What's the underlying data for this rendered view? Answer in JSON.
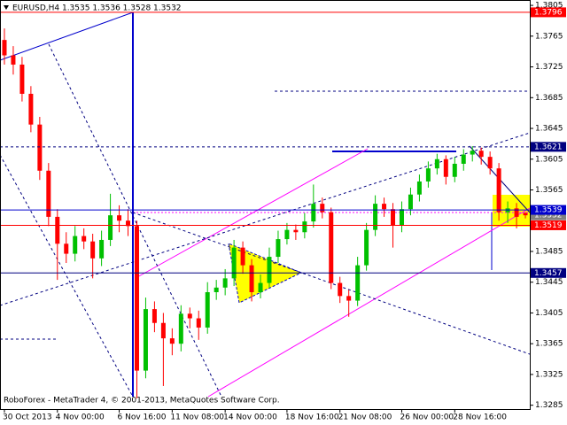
{
  "chart_data": {
    "type": "candlestick",
    "title": "EURUSD,H4  1.3535 1.3536 1.3528 1.3532",
    "footer": "RoboForex - MetaTrader 4, © 2001-2013, MetaQuotes Software Corp.",
    "categories": [
      "30 Oct 2013",
      null,
      null,
      null,
      null,
      null,
      "4 Nov 00:00",
      null,
      null,
      null,
      null,
      null,
      null,
      "6 Nov 16:00",
      null,
      null,
      null,
      null,
      null,
      "11 Nov 08:00",
      null,
      null,
      null,
      null,
      null,
      "14 Nov 00:00",
      null,
      null,
      null,
      null,
      null,
      null,
      "18 Nov 16:00",
      null,
      null,
      null,
      null,
      null,
      "21 Nov 08:00",
      null,
      null,
      null,
      null,
      null,
      null,
      "26 Nov 00:00",
      null,
      null,
      null,
      null,
      null,
      "28 Nov 16:00",
      null,
      null,
      null,
      null,
      null,
      null,
      null,
      null
    ],
    "open": [
      1.376,
      1.374,
      1.3728,
      1.369,
      1.365,
      1.359,
      1.353,
      1.3495,
      1.3482,
      1.3505,
      1.3498,
      1.3476,
      1.35,
      1.3532,
      1.3525,
      1.3518,
      1.333,
      1.341,
      1.3392,
      1.3372,
      1.3365,
      1.3404,
      1.3398,
      1.3386,
      1.3432,
      1.3438,
      1.345,
      1.349,
      1.3467,
      1.3432,
      1.3444,
      1.3478,
      1.3501,
      1.3513,
      1.351,
      1.3524,
      1.3547,
      1.3536,
      1.3444,
      1.3427,
      1.3421,
      1.3467,
      1.3513,
      1.3547,
      1.354,
      1.3519,
      1.354,
      1.3559,
      1.3576,
      1.3593,
      1.3605,
      1.3582,
      1.3599,
      1.3611,
      1.3616,
      1.3608,
      1.3593,
      1.3536,
      1.3541,
      1.3535
    ],
    "high": [
      1.3775,
      1.3752,
      1.3738,
      1.37,
      1.366,
      1.36,
      1.354,
      1.351,
      1.3518,
      1.3515,
      1.3508,
      1.3512,
      1.356,
      1.3545,
      1.354,
      1.3525,
      1.3425,
      1.342,
      1.3405,
      1.3385,
      1.3415,
      1.3412,
      1.3408,
      1.3445,
      1.3448,
      1.3462,
      1.35,
      1.3498,
      1.3475,
      1.3455,
      1.349,
      1.3512,
      1.3522,
      1.352,
      1.3535,
      1.3572,
      1.3555,
      1.3542,
      1.3452,
      1.3435,
      1.3478,
      1.3522,
      1.3558,
      1.3555,
      1.3548,
      1.355,
      1.3568,
      1.3585,
      1.3602,
      1.3612,
      1.361,
      1.3608,
      1.3618,
      1.3622,
      1.362,
      1.3615,
      1.36,
      1.355,
      1.3548,
      1.3536
    ],
    "low": [
      1.3728,
      1.3715,
      1.368,
      1.364,
      1.3578,
      1.3518,
      1.3448,
      1.347,
      1.3472,
      1.3488,
      1.345,
      1.3466,
      1.3492,
      1.351,
      1.3505,
      1.3294,
      1.332,
      1.338,
      1.331,
      1.335,
      1.3355,
      1.3385,
      1.337,
      1.3378,
      1.3422,
      1.3428,
      1.344,
      1.3456,
      1.342,
      1.3424,
      1.3438,
      1.347,
      1.3494,
      1.35,
      1.3502,
      1.3516,
      1.3528,
      1.3436,
      1.3418,
      1.34,
      1.3414,
      1.346,
      1.3505,
      1.353,
      1.349,
      1.351,
      1.3532,
      1.355,
      1.3568,
      1.3585,
      1.3572,
      1.3575,
      1.359,
      1.3602,
      1.3598,
      1.3585,
      1.3525,
      1.3522,
      1.3515,
      1.3528
    ],
    "close": [
      1.374,
      1.3728,
      1.369,
      1.365,
      1.359,
      1.353,
      1.3495,
      1.3482,
      1.3505,
      1.3498,
      1.3476,
      1.35,
      1.3532,
      1.3525,
      1.3518,
      1.333,
      1.341,
      1.3392,
      1.3372,
      1.3365,
      1.3404,
      1.3398,
      1.3386,
      1.3432,
      1.3438,
      1.345,
      1.349,
      1.3467,
      1.3432,
      1.3444,
      1.3478,
      1.3501,
      1.3513,
      1.351,
      1.3524,
      1.3547,
      1.3536,
      1.3444,
      1.3427,
      1.3421,
      1.3467,
      1.3513,
      1.3547,
      1.354,
      1.3519,
      1.354,
      1.3559,
      1.3576,
      1.3593,
      1.3605,
      1.3582,
      1.3599,
      1.3611,
      1.3616,
      1.3608,
      1.3593,
      1.3536,
      1.3541,
      1.353,
      1.3532
    ],
    "up_color": "#00c000",
    "down_color": "#ff0000",
    "ylim": [
      1.328,
      1.3812
    ],
    "yticks": [
      1.3805,
      1.3765,
      1.3725,
      1.3685,
      1.3645,
      1.3605,
      1.3565,
      1.3485,
      1.3445,
      1.3405,
      1.3365,
      1.3325,
      1.3285
    ],
    "grid": false,
    "levels": [
      {
        "value": 1.3796,
        "color": "#ff0000",
        "line": "solid"
      },
      {
        "value": 1.3621,
        "color": "#000080",
        "line": "dashed"
      },
      {
        "value": 1.3532,
        "color": "#808080",
        "line": "none"
      },
      {
        "value": 1.3539,
        "color": "#0000cc",
        "line": "solid"
      },
      {
        "value": 1.3519,
        "color": "#ff0000",
        "line": "solid"
      },
      {
        "value": 1.3457,
        "color": "#000080",
        "line": "solid"
      }
    ]
  }
}
